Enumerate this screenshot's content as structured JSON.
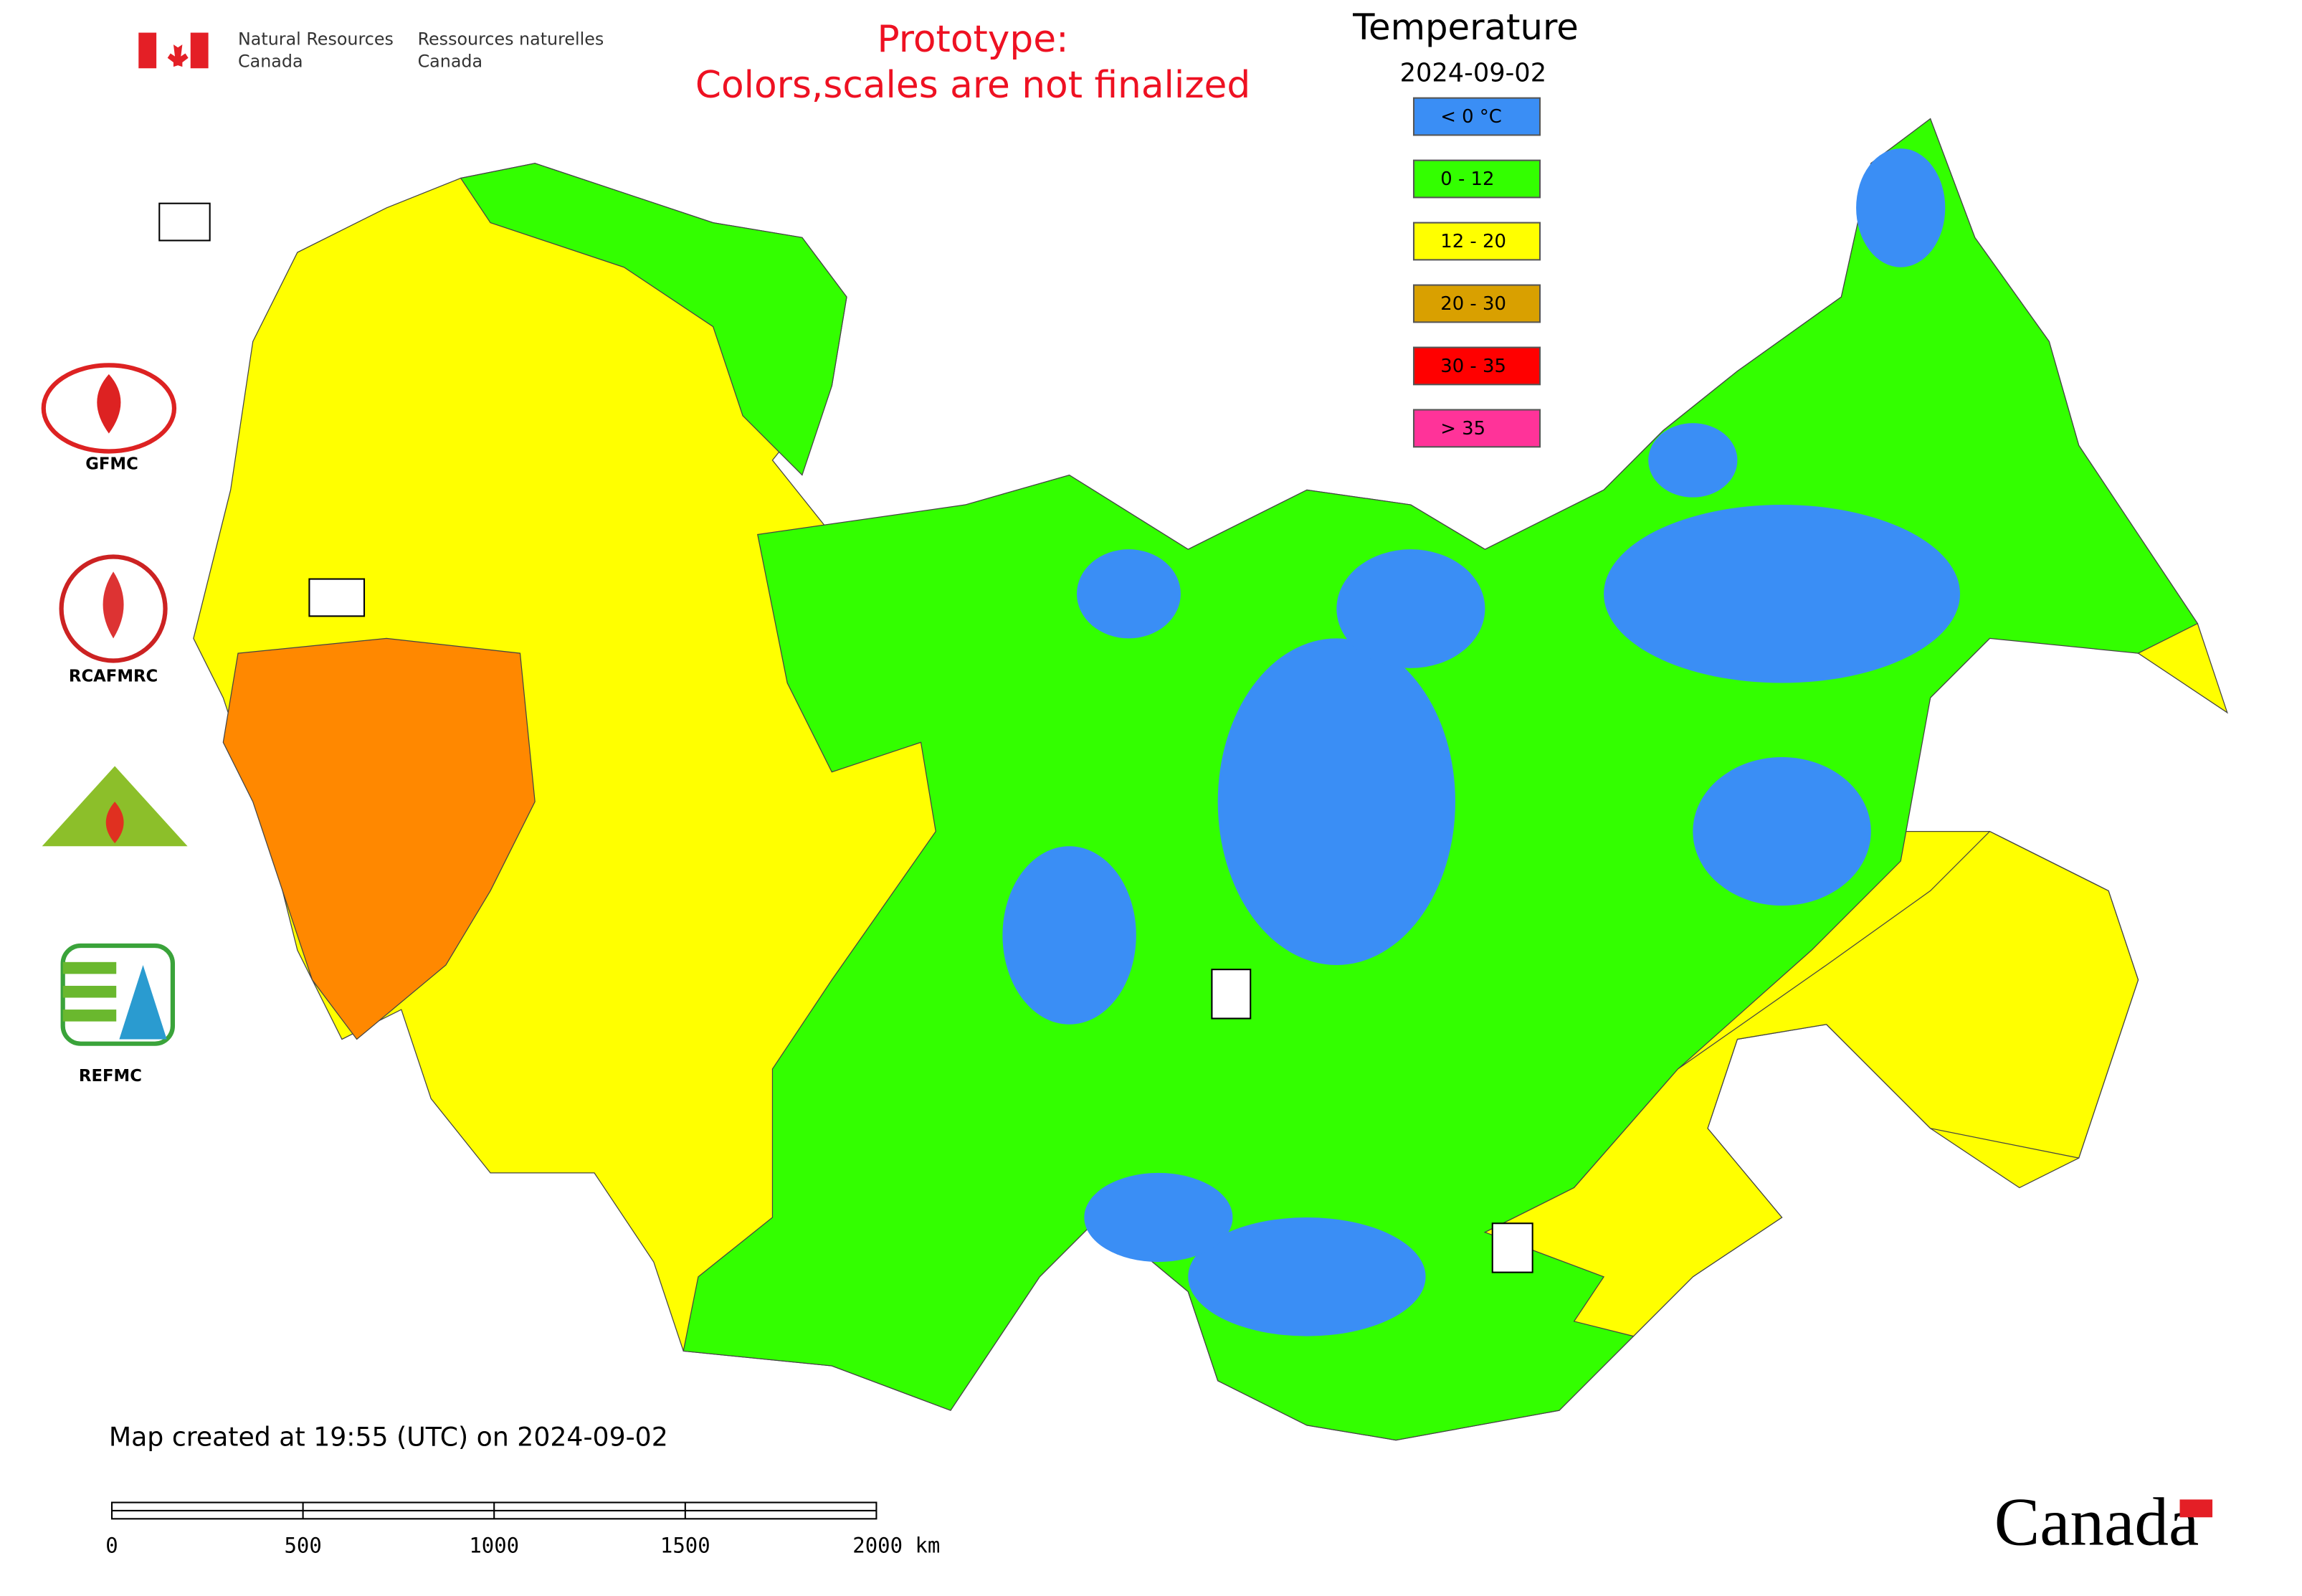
{
  "header": {
    "agency_en": [
      "Natural Resources",
      "Canada"
    ],
    "agency_fr": [
      "Ressources naturelles",
      "Canada"
    ],
    "notice": [
      "Prototype:",
      "Colors,scales are not finalized"
    ]
  },
  "legend": {
    "title": "Temperature",
    "date": "2024-09-02",
    "items": [
      {
        "label": "< 0 °C",
        "color": "#3a8ef5"
      },
      {
        "label": "0 - 12",
        "color": "#33ff00"
      },
      {
        "label": "12 - 20",
        "color": "#ffff00"
      },
      {
        "label": "20 - 30",
        "color": "#d9a000"
      },
      {
        "label": "30 - 35",
        "color": "#ff0000"
      },
      {
        "label": "> 35",
        "color": "#ff3399"
      }
    ]
  },
  "logos": [
    "GFMC",
    "RCAFMRC",
    "REFMC"
  ],
  "footer": {
    "created": "Map created at 19:55 (UTC) on 2024-09-02",
    "scale": [
      "0",
      "500",
      "1000",
      "1500",
      "2000 km"
    ],
    "wordmark": "Canada"
  }
}
